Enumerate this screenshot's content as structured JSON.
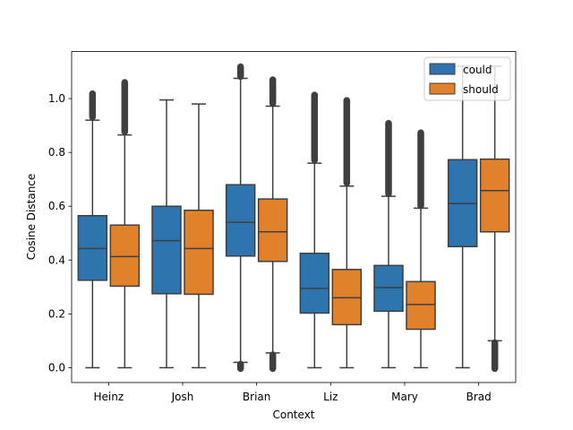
{
  "chart_data": {
    "type": "boxplot",
    "xlabel": "Context",
    "ylabel": "Cosine Distance",
    "ylim": [
      -0.055,
      1.175
    ],
    "yticks": [
      0.0,
      0.2,
      0.4,
      0.6,
      0.8,
      1.0
    ],
    "ytick_labels": [
      "0.0",
      "0.2",
      "0.4",
      "0.6",
      "0.8",
      "1.0"
    ],
    "categories": [
      "Heinz",
      "Josh",
      "Brian",
      "Liz",
      "Mary",
      "Brad"
    ],
    "legend": {
      "placement": "upper-right"
    },
    "series": [
      {
        "name": "could",
        "color": "#2e74ae",
        "boxes": [
          {
            "q1": 0.325,
            "median": 0.443,
            "q3": 0.565,
            "whislo": 0.0,
            "whishi": 0.92,
            "fliers_low": [],
            "fliers_high": [
              0.93,
              1.02
            ]
          },
          {
            "q1": 0.275,
            "median": 0.472,
            "q3": 0.6,
            "whislo": 0.0,
            "whishi": 0.995,
            "fliers_low": [],
            "fliers_high": []
          },
          {
            "q1": 0.415,
            "median": 0.54,
            "q3": 0.68,
            "whislo": 0.02,
            "whishi": 1.075,
            "fliers_low": [
              -0.005,
              0.015
            ],
            "fliers_high": [
              1.08,
              1.12
            ]
          },
          {
            "q1": 0.203,
            "median": 0.295,
            "q3": 0.425,
            "whislo": 0.0,
            "whishi": 0.76,
            "fliers_low": [],
            "fliers_high": [
              0.77,
              1.015
            ]
          },
          {
            "q1": 0.21,
            "median": 0.298,
            "q3": 0.38,
            "whislo": 0.0,
            "whishi": 0.637,
            "fliers_low": [],
            "fliers_high": [
              0.645,
              0.91
            ]
          },
          {
            "q1": 0.45,
            "median": 0.61,
            "q3": 0.773,
            "whislo": 0.0,
            "whishi": 1.12,
            "fliers_low": [],
            "fliers_high": []
          }
        ]
      },
      {
        "name": "should",
        "color": "#e1812c",
        "boxes": [
          {
            "q1": 0.303,
            "median": 0.413,
            "q3": 0.53,
            "whislo": 0.0,
            "whishi": 0.865,
            "fliers_low": [],
            "fliers_high": [
              0.875,
              1.062
            ]
          },
          {
            "q1": 0.273,
            "median": 0.443,
            "q3": 0.585,
            "whislo": 0.0,
            "whishi": 0.98,
            "fliers_low": [],
            "fliers_high": []
          },
          {
            "q1": 0.395,
            "median": 0.505,
            "q3": 0.627,
            "whislo": 0.055,
            "whishi": 0.972,
            "fliers_low": [
              -0.005,
              0.05
            ],
            "fliers_high": [
              0.98,
              1.072
            ]
          },
          {
            "q1": 0.16,
            "median": 0.26,
            "q3": 0.365,
            "whislo": 0.0,
            "whishi": 0.675,
            "fliers_low": [],
            "fliers_high": [
              0.685,
              0.995
            ]
          },
          {
            "q1": 0.143,
            "median": 0.235,
            "q3": 0.32,
            "whislo": 0.0,
            "whishi": 0.593,
            "fliers_low": [],
            "fliers_high": [
              0.6,
              0.875
            ]
          },
          {
            "q1": 0.505,
            "median": 0.658,
            "q3": 0.775,
            "whislo": 0.1,
            "whishi": 1.12,
            "fliers_low": [
              -0.005,
              0.095
            ],
            "fliers_high": []
          }
        ]
      }
    ]
  }
}
